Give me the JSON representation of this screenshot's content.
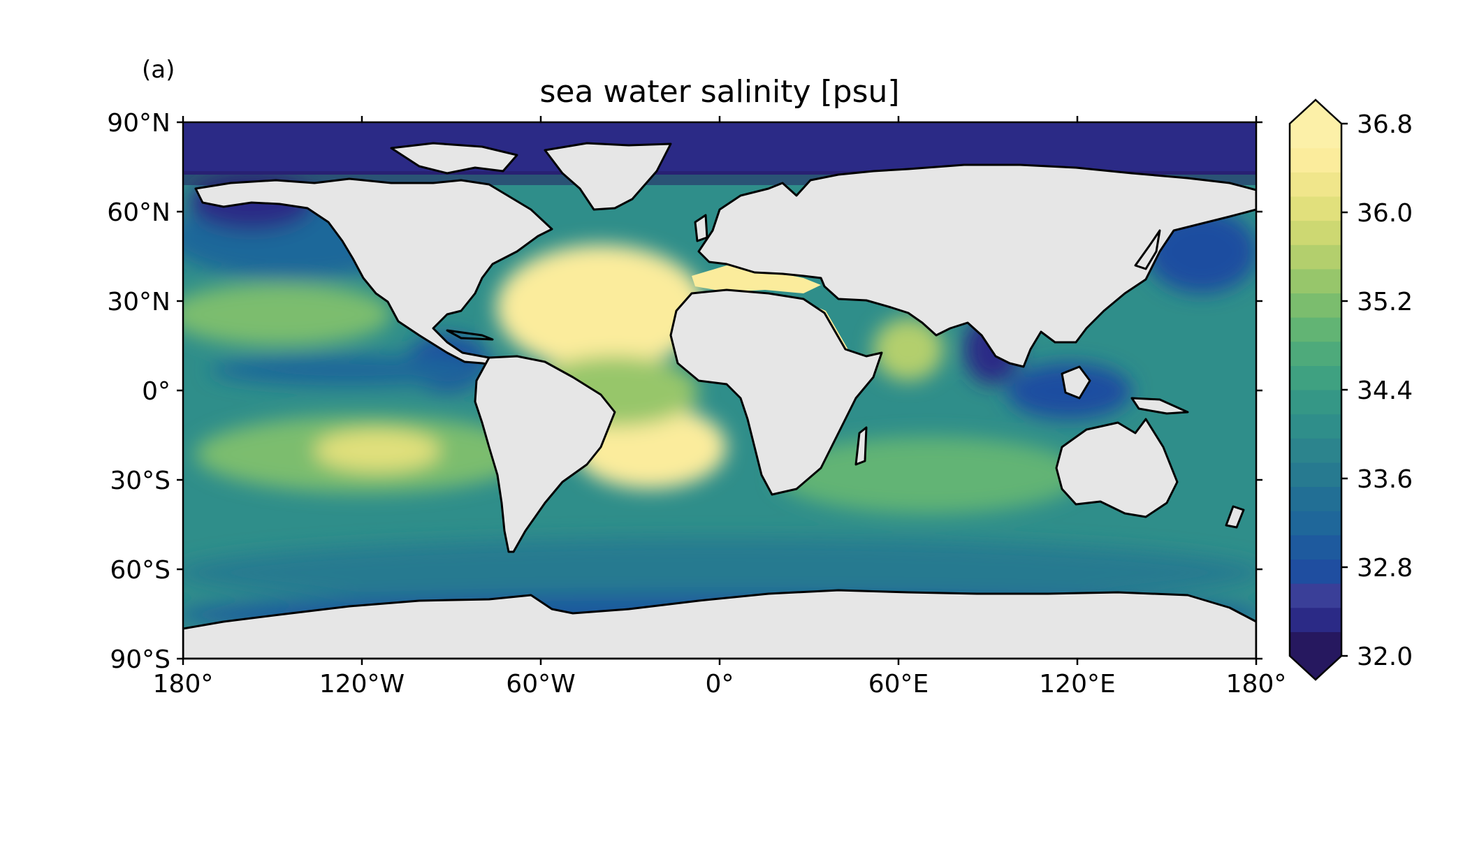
{
  "panel_label": "(a)",
  "title": "sea water salinity [psu]",
  "map": {
    "projection": "PlateCarree",
    "lon_range": [
      -180,
      180
    ],
    "lat_range": [
      -90,
      90
    ],
    "land_color": "#e6e6e6",
    "coastline_color": "#000000",
    "lon_ticks": [
      {
        "value": -180,
        "label": "180°"
      },
      {
        "value": -120,
        "label": "120°W"
      },
      {
        "value": -60,
        "label": "60°W"
      },
      {
        "value": 0,
        "label": "0°"
      },
      {
        "value": 60,
        "label": "60°E"
      },
      {
        "value": 120,
        "label": "120°E"
      },
      {
        "value": 180,
        "label": "180°"
      }
    ],
    "lat_ticks": [
      {
        "value": 90,
        "label": "90°N"
      },
      {
        "value": 60,
        "label": "60°N"
      },
      {
        "value": 30,
        "label": "30°N"
      },
      {
        "value": 0,
        "label": "0°"
      },
      {
        "value": -30,
        "label": "30°S"
      },
      {
        "value": -60,
        "label": "60°S"
      },
      {
        "value": -90,
        "label": "90°S"
      }
    ]
  },
  "colorbar": {
    "min": 32.0,
    "max": 36.8,
    "extend": "both",
    "colors": [
      "#26185f",
      "#2b2a86",
      "#3a3f98",
      "#1f4ea0",
      "#1e5a9e",
      "#1f679a",
      "#226f95",
      "#277a90",
      "#2c848d",
      "#2f8e8a",
      "#359786",
      "#3fa181",
      "#4eaa7b",
      "#62b474",
      "#7bbd6e",
      "#97c66b",
      "#b3cf6d",
      "#cdd872",
      "#e1e07c",
      "#f0e68b",
      "#fbec9c",
      "#fcf0a8"
    ],
    "ticks": [
      {
        "value": 32.0,
        "label": "32.0"
      },
      {
        "value": 32.8,
        "label": "32.8"
      },
      {
        "value": 33.6,
        "label": "33.6"
      },
      {
        "value": 34.4,
        "label": "34.4"
      },
      {
        "value": 35.2,
        "label": "35.2"
      },
      {
        "value": 36.0,
        "label": "36.0"
      },
      {
        "value": 36.8,
        "label": "36.8"
      }
    ]
  }
}
